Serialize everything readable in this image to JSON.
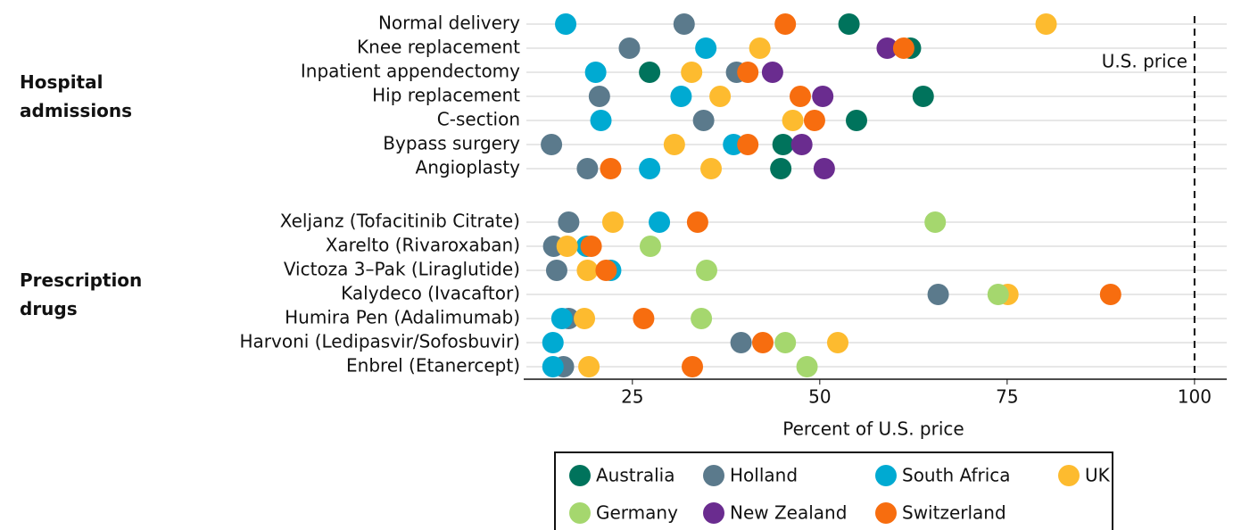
{
  "chart_data": {
    "type": "dot",
    "xlabel": "Percent of U.S. price",
    "xlim": [
      10.5,
      104.3
    ],
    "xticks": [
      25,
      50,
      75,
      100
    ],
    "grid": true,
    "reference_line": {
      "value": 100,
      "label": "U.S. price"
    },
    "groups": [
      {
        "label": "Hospital admissions",
        "categories": [
          "Normal delivery",
          "Knee replacement",
          "Inpatient appendectomy",
          "Hip replacement",
          "C-section",
          "Bypass surgery",
          "Angioplasty"
        ]
      },
      {
        "label": "Prescription drugs",
        "categories": [
          "Xeljanz (Tofacitinib Citrate)",
          "Xarelto (Rivaroxaban)",
          "Victoza 3–Pak (Liraglutide)",
          "Kalydeco (Ivacaftor)",
          "Humira Pen (Adalimumab)",
          "Harvoni (Ledipasvir/Sofosbuvir)",
          "Enbrel (Etanercept)"
        ]
      }
    ],
    "series": [
      {
        "name": "Australia",
        "color": "#00735c",
        "values": [
          53.9,
          62.1,
          27.3,
          63.8,
          54.9,
          45.1,
          44.8,
          null,
          null,
          null,
          null,
          null,
          null,
          null
        ]
      },
      {
        "name": "Holland",
        "color": "#5b7a8c",
        "values": [
          31.9,
          24.6,
          38.9,
          20.6,
          34.5,
          14.2,
          19.0,
          16.5,
          14.5,
          14.9,
          65.8,
          16.5,
          39.5,
          15.8
        ]
      },
      {
        "name": "South Africa",
        "color": "#00aad2",
        "values": [
          16.1,
          34.8,
          20.1,
          31.5,
          20.8,
          38.5,
          27.3,
          28.6,
          18.9,
          22.1,
          null,
          15.6,
          14.4,
          14.4
        ]
      },
      {
        "name": "UK",
        "color": "#fdbb2f",
        "values": [
          80.2,
          42.0,
          32.9,
          36.7,
          46.4,
          30.6,
          35.5,
          22.4,
          16.3,
          19.0,
          75.1,
          18.6,
          52.4,
          19.2
        ]
      },
      {
        "name": "Germany",
        "color": "#a5d76e",
        "values": [
          null,
          null,
          null,
          null,
          null,
          null,
          null,
          65.4,
          27.4,
          34.9,
          73.8,
          34.2,
          45.4,
          48.3
        ]
      },
      {
        "name": "New Zealand",
        "color": "#6a2c8f",
        "values": [
          null,
          59.0,
          43.7,
          50.4,
          null,
          47.6,
          50.6,
          null,
          null,
          null,
          null,
          null,
          null,
          null
        ]
      },
      {
        "name": "Switzerland",
        "color": "#f76d0f",
        "values": [
          45.4,
          61.2,
          40.4,
          47.4,
          49.3,
          40.4,
          22.1,
          33.7,
          19.5,
          21.5,
          88.8,
          26.5,
          42.4,
          33.0
        ]
      }
    ]
  }
}
